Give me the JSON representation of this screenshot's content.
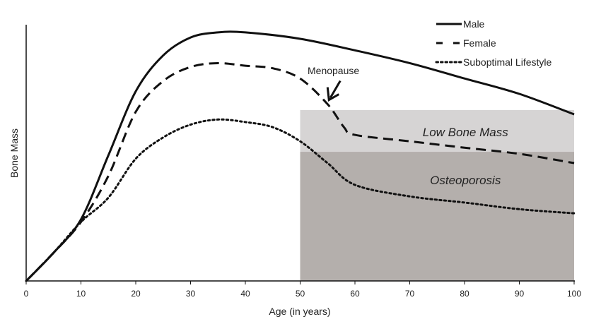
{
  "chart_data": {
    "type": "line",
    "title": "",
    "xlabel": "Age (in years)",
    "ylabel": "Bone Mass",
    "xlim": [
      0,
      100
    ],
    "ylim": [
      0,
      100
    ],
    "xticks": [
      0,
      10,
      20,
      30,
      40,
      50,
      60,
      70,
      80,
      90,
      100
    ],
    "yticks": [],
    "grid": false,
    "legend_position": "top-right",
    "series": [
      {
        "name": "Male",
        "style": "solid",
        "color": "#111111",
        "x": [
          0,
          5,
          10,
          15,
          20,
          25,
          30,
          35,
          40,
          50,
          60,
          70,
          80,
          90,
          100
        ],
        "y": [
          0,
          11,
          24,
          49,
          74,
          88,
          95,
          97,
          97,
          94.5,
          90,
          85,
          79,
          73,
          65
        ]
      },
      {
        "name": "Female",
        "style": "dashed",
        "color": "#111111",
        "x": [
          0,
          5,
          10,
          15,
          20,
          25,
          30,
          35,
          40,
          45,
          50,
          55,
          58,
          60,
          70,
          80,
          90,
          100
        ],
        "y": [
          0,
          11,
          23,
          41,
          66,
          78,
          83.5,
          85,
          84,
          83,
          79,
          69,
          60,
          57,
          54.5,
          52,
          49.6,
          46
        ]
      },
      {
        "name": "Suboptimal Lifestyle",
        "style": "dotted",
        "color": "#111111",
        "x": [
          0,
          5,
          10,
          15,
          20,
          25,
          30,
          35,
          40,
          45,
          50,
          55,
          60,
          70,
          80,
          90,
          100
        ],
        "y": [
          0,
          11,
          23,
          32.5,
          47.7,
          56,
          61,
          63,
          62,
          60,
          54.5,
          46,
          37.5,
          33,
          30.6,
          28,
          26.4
        ]
      }
    ],
    "regions": [
      {
        "label": "Low Bone Mass",
        "x": [
          50,
          100
        ],
        "y": [
          50.4,
          66.7
        ],
        "color": "#d6d4d4"
      },
      {
        "label": "Osteoporosis",
        "x": [
          50,
          100
        ],
        "y": [
          0,
          50.4
        ],
        "color": "#b4afac"
      }
    ],
    "annotations": [
      {
        "text": "Menopause",
        "x": 55,
        "y": 69,
        "arrow": true
      }
    ]
  }
}
